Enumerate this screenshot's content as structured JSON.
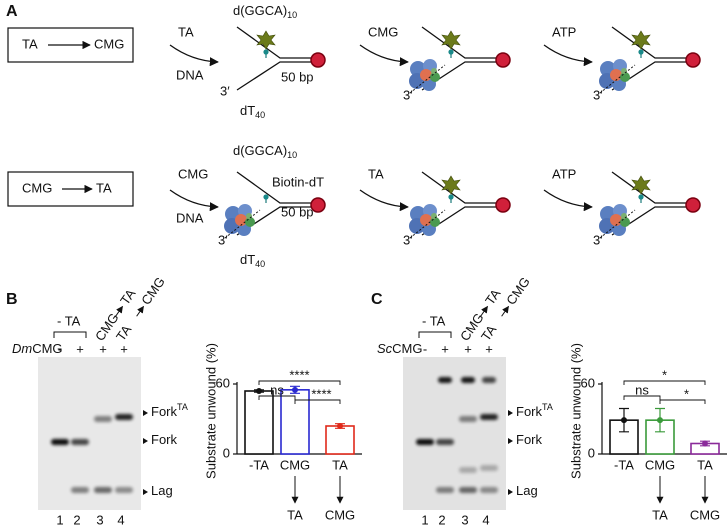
{
  "panel_a": {
    "label": "A",
    "rows": [
      {
        "box": [
          "TA",
          "CMG"
        ],
        "steps": [
          "TA",
          "CMG",
          "ATP"
        ],
        "dna": "DNA",
        "top_strand": {
          "text": "d(GGCA)",
          "sub": "10"
        },
        "bottom_strand": {
          "text": "dT",
          "sub": "40"
        },
        "three_prime": "3′",
        "length": "50 bp"
      },
      {
        "box": [
          "CMG",
          "TA"
        ],
        "steps": [
          "CMG",
          "TA",
          "ATP"
        ],
        "dna": "DNA",
        "top_strand": {
          "text": "d(GGCA)",
          "sub": "10"
        },
        "bottom_strand": {
          "text": "dT",
          "sub": "40"
        },
        "three_prime": "3′",
        "biotin": "Biotin-dT",
        "length": "50 bp"
      }
    ]
  },
  "gels": [
    {
      "label": "B",
      "condition": "- TA",
      "lane_labels": [
        [
          "CMG",
          "TA"
        ],
        [
          "TA",
          "CMG"
        ]
      ],
      "enzyme": {
        "species": "Dm",
        "text": "CMG"
      },
      "lane_signs": [
        "-",
        "+",
        "+",
        "+"
      ],
      "bands": [
        {
          "text": "Fork",
          "sup": "TA"
        },
        {
          "text": "Fork"
        },
        {
          "text": "Lag"
        }
      ],
      "lanes": [
        "1",
        "2",
        "3",
        "4"
      ]
    },
    {
      "label": "C",
      "condition": "- TA",
      "lane_labels": [
        [
          "CMG",
          "TA"
        ],
        [
          "TA",
          "CMG"
        ]
      ],
      "enzyme": {
        "species": "Sc",
        "text": "CMG"
      },
      "lane_signs": [
        "-",
        "+",
        "+",
        "+"
      ],
      "bands": [
        {
          "text": "Fork",
          "sup": "TA"
        },
        {
          "text": "Fork"
        },
        {
          "text": "Lag"
        }
      ],
      "lanes": [
        "1",
        "2",
        "3",
        "4"
      ]
    }
  ],
  "chart_data": [
    {
      "type": "bar",
      "ylabel": "Substrate unwound (%)",
      "categories": [
        "-TA",
        "CMG",
        "TA"
      ],
      "sublabels": [
        null,
        "TA",
        "CMG"
      ],
      "values": [
        54,
        55,
        24
      ],
      "errors": [
        1,
        3,
        2
      ],
      "colors": [
        "#111111",
        "#2a2ad0",
        "#e02a1a"
      ],
      "ylim": [
        0,
        60
      ],
      "yticks": [
        0,
        60
      ],
      "significance": [
        "ns",
        "****",
        "****"
      ]
    },
    {
      "type": "bar",
      "ylabel": "Substrate unwound (%)",
      "categories": [
        "-TA",
        "CMG",
        "TA"
      ],
      "sublabels": [
        null,
        "TA",
        "CMG"
      ],
      "values": [
        29,
        29,
        9
      ],
      "errors": [
        10,
        10,
        2
      ],
      "colors": [
        "#111111",
        "#3a9a3a",
        "#8a2a9a"
      ],
      "ylim": [
        0,
        60
      ],
      "yticks": [
        0,
        60
      ],
      "significance": [
        "ns",
        "*",
        "*"
      ]
    }
  ]
}
